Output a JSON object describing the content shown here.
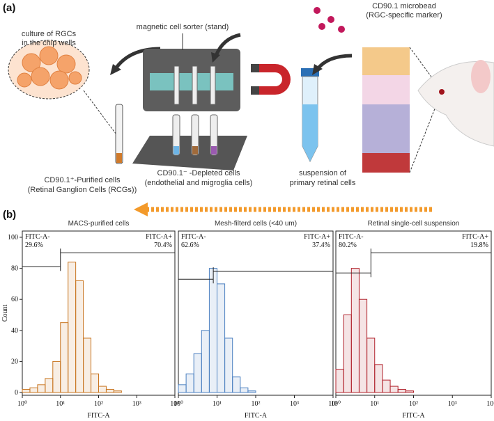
{
  "panel_a": {
    "label": "(a)",
    "sorter": "magnetic cell sorter (stand)",
    "microbead": "CD90.1 microbead",
    "microbead_note": "(RGC-specific marker)",
    "culture_1": "culture of RGCs",
    "culture_2": "in the chip wells",
    "purified_1": "CD90.1⁺-Purified cells",
    "purified_2": "(Retinal Ganglion Cells (RCGs))",
    "depleted_1": "CD90.1⁻ -Depleted cells",
    "depleted_2": "(endothelial and migroglia cells)",
    "suspension_1": "suspension of",
    "suspension_2": "primary retinal cells"
  },
  "panel_b": {
    "label": "(b)"
  },
  "chart_data": [
    {
      "type": "histogram",
      "title": "MACS-purified cells",
      "xlabel": "FITC-A",
      "ylabel": "Count",
      "color": "#c8741e",
      "log_x": true,
      "bins": [
        1,
        1.585,
        2.512,
        3.981,
        6.31,
        10,
        15.85,
        25.12,
        39.81,
        63.1,
        100,
        158.5,
        251.2,
        398.1,
        631,
        1000,
        1585,
        2512,
        3981,
        6310,
        10000
      ],
      "counts": [
        2,
        3,
        5,
        9,
        20,
        45,
        84,
        72,
        35,
        12,
        4,
        2,
        1,
        0,
        0,
        0,
        0,
        0,
        0,
        0
      ],
      "xlim": [
        1,
        10000
      ],
      "xticks": [
        {
          "value": 1,
          "label": "10⁰"
        },
        {
          "value": 10,
          "label": "10¹"
        },
        {
          "value": 100,
          "label": "10²"
        },
        {
          "value": 1000,
          "label": "10³"
        },
        {
          "value": 10000,
          "label": "10⁴"
        }
      ],
      "ylim": [
        0,
        100
      ],
      "yticks": [
        0,
        20,
        40,
        60,
        80,
        100
      ],
      "gate": {
        "threshold": 10,
        "neg_level": 81,
        "pos_level": 90
      },
      "neg_label": "FITC-A-",
      "neg_percent": "29.6%",
      "pos_label": "FITC-A+",
      "pos_percent": "70.4%"
    },
    {
      "type": "histogram",
      "title": "Mesh-filterd cells (<40 um)",
      "xlabel": "FITC-A",
      "color": "#4a7fc0",
      "log_x": true,
      "bins": [
        1,
        1.585,
        2.512,
        3.981,
        6.31,
        10,
        15.85,
        25.12,
        39.81,
        63.1,
        100,
        158.5,
        251.2,
        398.1,
        631,
        1000,
        1585,
        2512,
        3981,
        6310,
        10000
      ],
      "counts": [
        5,
        12,
        25,
        40,
        80,
        70,
        35,
        10,
        3,
        1,
        0,
        0,
        0,
        0,
        0,
        0,
        0,
        0,
        0,
        0
      ],
      "xlim": [
        1,
        10000
      ],
      "xticks": [
        {
          "value": 1,
          "label": "10⁰"
        },
        {
          "value": 10,
          "label": "10¹"
        },
        {
          "value": 100,
          "label": "10²"
        },
        {
          "value": 1000,
          "label": "10³"
        },
        {
          "value": 10000,
          "label": "10⁴"
        }
      ],
      "ylim": [
        0,
        100
      ],
      "gate": {
        "threshold": 8,
        "neg_level": 73,
        "pos_level": 78
      },
      "neg_label": "FITC-A-",
      "neg_percent": "62.6%",
      "pos_label": "FITC-A+",
      "pos_percent": "37.4%"
    },
    {
      "type": "histogram",
      "title": "Retinal single-cell suspension",
      "xlabel": "FITC-A",
      "color": "#b0202a",
      "log_x": true,
      "bins": [
        1,
        1.585,
        2.512,
        3.981,
        6.31,
        10,
        15.85,
        25.12,
        39.81,
        63.1,
        100,
        158.5,
        251.2,
        398.1,
        631,
        1000,
        1585,
        2512,
        3981,
        6310,
        10000
      ],
      "counts": [
        15,
        50,
        80,
        60,
        35,
        18,
        8,
        4,
        2,
        1,
        0,
        0,
        0,
        0,
        0,
        0,
        0,
        0,
        0,
        0
      ],
      "xlim": [
        1,
        10000
      ],
      "xticks": [
        {
          "value": 1,
          "label": "10⁰"
        },
        {
          "value": 10,
          "label": "10¹"
        },
        {
          "value": 100,
          "label": "10²"
        },
        {
          "value": 1000,
          "label": "10³"
        },
        {
          "value": 10000,
          "label": "10⁴"
        }
      ],
      "ylim": [
        0,
        100
      ],
      "gate": {
        "threshold": 8,
        "neg_level": 77,
        "pos_level": 90
      },
      "neg_label": "FITC-A-",
      "neg_percent": "80.2%",
      "pos_label": "FITC-A+",
      "pos_percent": "19.8%"
    }
  ]
}
